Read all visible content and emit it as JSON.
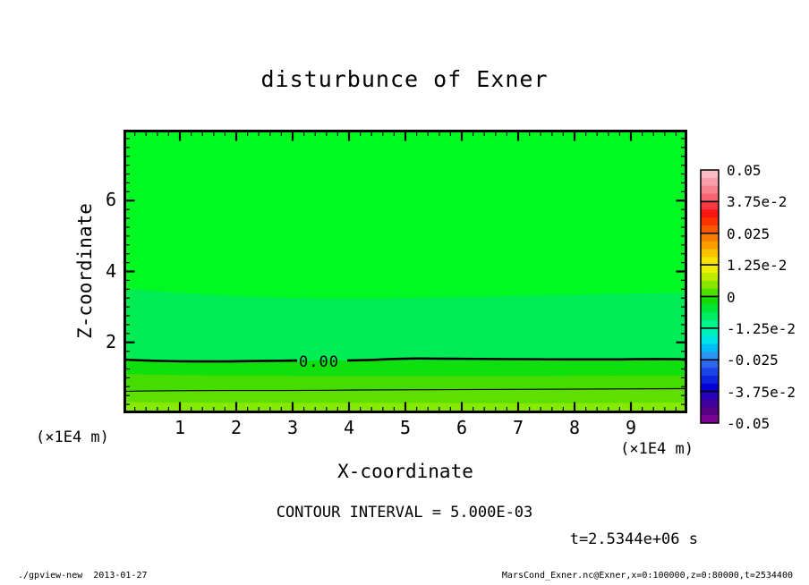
{
  "title": "disturbunce of Exner",
  "plot": {
    "xlabel": "X-coordinate",
    "ylabel": "Z-coordinate",
    "x_unit_left": "(×1E4 m)",
    "x_unit_right": "(×1E4 m)",
    "x_ticks": [
      "1",
      "2",
      "3",
      "4",
      "5",
      "6",
      "7",
      "8",
      "9"
    ],
    "y_ticks": [
      "2",
      "4",
      "6"
    ],
    "contour_label": "0.00",
    "colors": {
      "upper": "#00f823",
      "mid": "#00ec55",
      "band_a": "#0fdf0c",
      "band_b": "#46dc00",
      "band_c": "#5fdf00",
      "band_d": "#85ea00",
      "contour_line": "#000000"
    }
  },
  "colorbar": {
    "labels": [
      "0.05",
      "3.75e-2",
      "0.025",
      "1.25e-2",
      "0",
      "-1.25e-2",
      "-0.025",
      "-3.75e-2",
      "-0.05"
    ],
    "segments": [
      [
        "#f8bcc4",
        "#f8a0aa",
        "#f8828e",
        "#f86472"
      ],
      [
        "#f83840",
        "#f81410",
        "#f83300",
        "#f85600"
      ],
      [
        "#f87c00",
        "#f89e00",
        "#f8c200",
        "#f8e200"
      ],
      [
        "#f0ee00",
        "#c0ec00",
        "#8ae600",
        "#50e000"
      ],
      [
        "#12dc04",
        "#00e436",
        "#00ec62",
        "#00f48e"
      ],
      [
        "#00f0bc",
        "#00e4e8",
        "#00bef4",
        "#2e96f2"
      ],
      [
        "#2e66ee",
        "#1c44e6",
        "#0e24de",
        "#0202d6"
      ],
      [
        "#2a00b8",
        "#40009c",
        "#560086",
        "#7c0492"
      ]
    ]
  },
  "annotations": {
    "contour_interval": "CONTOUR INTERVAL = 5.000E-03",
    "time": "t=2.5344e+06 s"
  },
  "footer": {
    "left": "./gpview-new  2013-01-27",
    "right": "MarsCond_Exner.nc@Exner,x=0:100000,z=0:80000,t=2534400"
  },
  "chart_data": {
    "type": "heatmap",
    "subtype": "filled-contour",
    "title": "disturbunce of Exner",
    "xlabel": "X-coordinate",
    "ylabel": "Z-coordinate",
    "x_unit": "×1E4 m",
    "y_unit": "×1E4 m",
    "xlim": [
      0,
      10
    ],
    "ylim": [
      0,
      8
    ],
    "x_major_ticks": [
      1,
      2,
      3,
      4,
      5,
      6,
      7,
      8,
      9
    ],
    "y_major_ticks": [
      2,
      4,
      6
    ],
    "contour_interval": 0.005,
    "colorbar_ticks": [
      0.05,
      0.0375,
      0.025,
      0.0125,
      0,
      -0.0125,
      -0.025,
      -0.0375,
      -0.05
    ],
    "labeled_contours": [
      {
        "level": 0.0,
        "label": "0.00",
        "z_location": 1.45
      }
    ],
    "unlabeled_contours": [
      {
        "level": 0.005,
        "z_location": 0.65
      }
    ],
    "bands": [
      {
        "z_from": 3.45,
        "z_to": 8.0,
        "approx_value": -0.0015
      },
      {
        "z_from": 1.45,
        "z_to": 3.45,
        "approx_value": -0.0045
      },
      {
        "z_from": 1.05,
        "z_to": 1.45,
        "approx_value": 0.0015
      },
      {
        "z_from": 0.65,
        "z_to": 1.05,
        "approx_value": 0.004
      },
      {
        "z_from": 0.3,
        "z_to": 0.65,
        "approx_value": 0.0055
      },
      {
        "z_from": 0.0,
        "z_to": 0.3,
        "approx_value": 0.008
      }
    ],
    "legend_position": "right-colorbar",
    "grid": false
  }
}
